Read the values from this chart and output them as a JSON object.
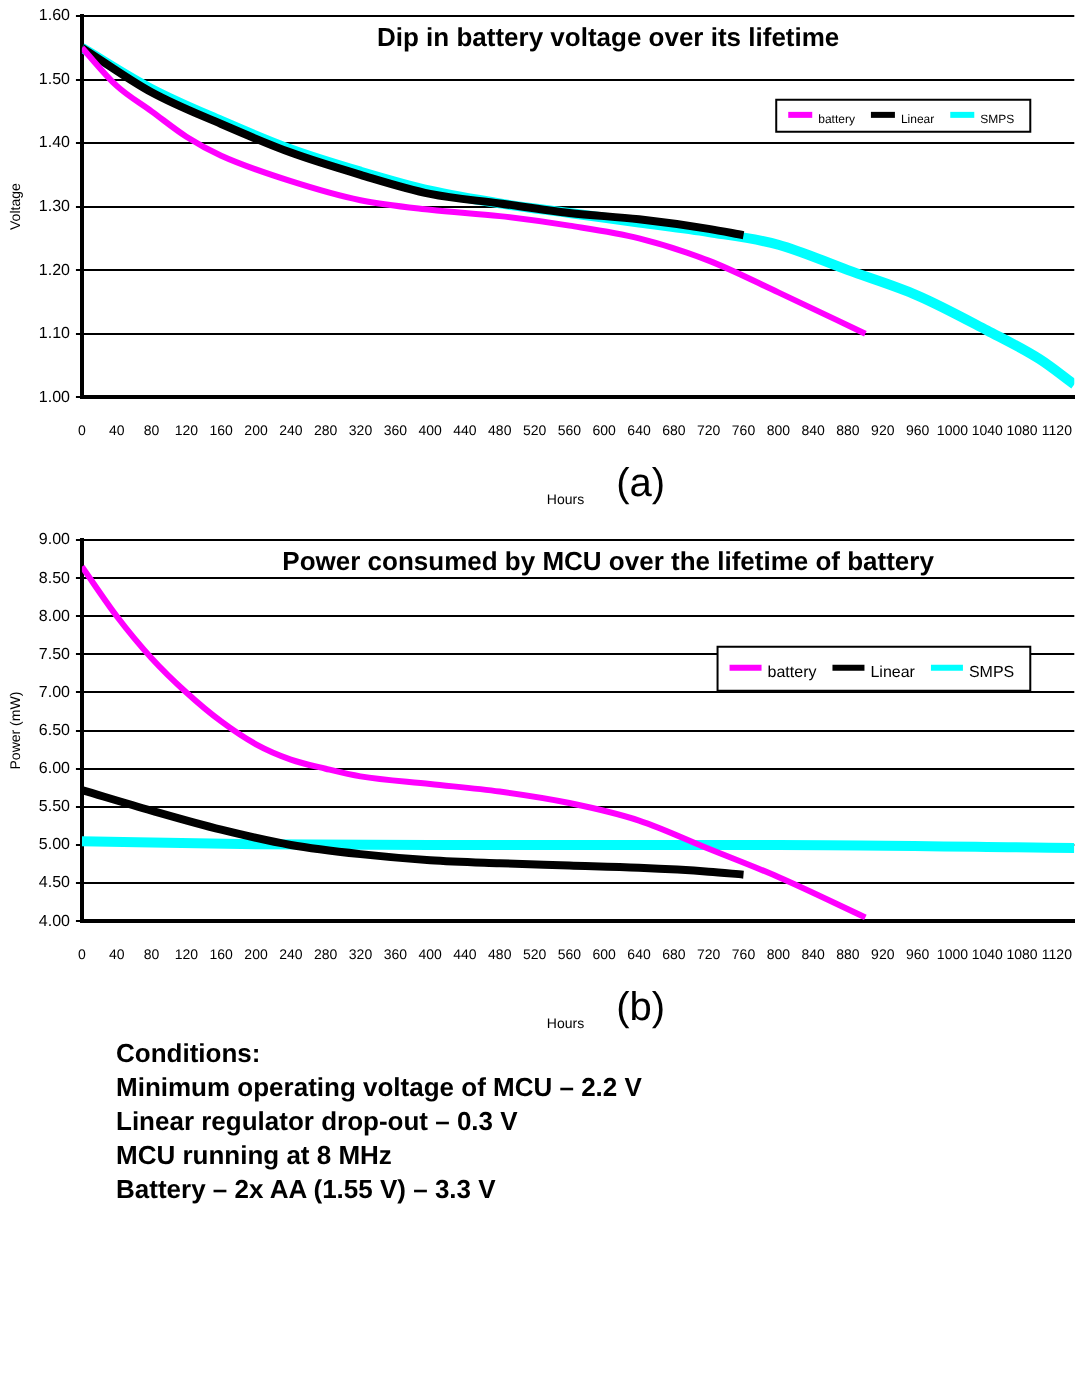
{
  "chart_data": [
    {
      "type": "line",
      "title": "Dip in battery voltage over its lifetime",
      "xlabel": "Hours",
      "ylabel": "Voltage",
      "annotations": [
        "(a)"
      ],
      "xlim": [
        0,
        1140
      ],
      "xticks": [
        0,
        40,
        80,
        120,
        160,
        200,
        240,
        280,
        320,
        360,
        400,
        440,
        480,
        520,
        560,
        600,
        640,
        680,
        720,
        760,
        800,
        840,
        880,
        920,
        960,
        1000,
        1040,
        1080,
        1120
      ],
      "ylim": [
        1.0,
        1.6
      ],
      "yticks": [
        {
          "value": 1.0,
          "label": "1.00"
        },
        {
          "value": 1.1,
          "label": "1.10"
        },
        {
          "value": 1.2,
          "label": "1.20"
        },
        {
          "value": 1.3,
          "label": "1.30"
        },
        {
          "value": 1.4,
          "label": "1.40"
        },
        {
          "value": 1.5,
          "label": "1.50"
        },
        {
          "value": 1.6,
          "label": "1.60"
        }
      ],
      "grid": "y",
      "legend": "top right",
      "marker": "none",
      "line_style": "solid",
      "series": [
        {
          "name": "battery",
          "color": "#ff00ff",
          "x": [
            0,
            40,
            80,
            120,
            160,
            240,
            320,
            400,
            480,
            560,
            640,
            720,
            800,
            900
          ],
          "values": [
            1.55,
            1.49,
            1.45,
            1.41,
            1.38,
            1.34,
            1.31,
            1.295,
            1.285,
            1.27,
            1.25,
            1.215,
            1.165,
            1.1
          ]
        },
        {
          "name": "Linear",
          "color": "#000000",
          "x": [
            0,
            80,
            160,
            240,
            320,
            400,
            480,
            560,
            640,
            720,
            760
          ],
          "values": [
            1.55,
            1.48,
            1.43,
            1.385,
            1.35,
            1.32,
            1.305,
            1.29,
            1.28,
            1.265,
            1.255
          ]
        },
        {
          "name": "SMPS",
          "color": "#00ffff",
          "x": [
            0,
            80,
            160,
            240,
            320,
            400,
            480,
            560,
            640,
            720,
            800,
            880,
            960,
            1040,
            1100,
            1140
          ],
          "values": [
            1.55,
            1.485,
            1.435,
            1.39,
            1.355,
            1.325,
            1.305,
            1.29,
            1.275,
            1.26,
            1.24,
            1.2,
            1.16,
            1.105,
            1.06,
            1.02
          ]
        }
      ]
    },
    {
      "type": "line",
      "title": "Power consumed by MCU over the lifetime of battery",
      "xlabel": "Hours",
      "ylabel": "Power (mW)",
      "annotations": [
        "(b)",
        "Conditions:",
        "Minimum operating voltage of MCU – 2.2 V",
        "Linear regulator drop-out – 0.3 V",
        "MCU running at 8 MHz",
        "Battery – 2x AA (1.55 V) – 3.3 V"
      ],
      "xlim": [
        0,
        1140
      ],
      "xticks": [
        0,
        40,
        80,
        120,
        160,
        200,
        240,
        280,
        320,
        360,
        400,
        440,
        480,
        520,
        560,
        600,
        640,
        680,
        720,
        760,
        800,
        840,
        880,
        920,
        960,
        1000,
        1040,
        1080,
        1120
      ],
      "ylim": [
        4.0,
        9.0
      ],
      "yticks": [
        {
          "value": 4.0,
          "label": "4.00"
        },
        {
          "value": 4.5,
          "label": "4.50"
        },
        {
          "value": 5.0,
          "label": "5.00"
        },
        {
          "value": 5.5,
          "label": "5.50"
        },
        {
          "value": 6.0,
          "label": "6.00"
        },
        {
          "value": 6.5,
          "label": "6.50"
        },
        {
          "value": 7.0,
          "label": "7.00"
        },
        {
          "value": 7.5,
          "label": "7.50"
        },
        {
          "value": 8.0,
          "label": "8.00"
        },
        {
          "value": 8.5,
          "label": "8.50"
        },
        {
          "value": 9.0,
          "label": "9.00"
        }
      ],
      "grid": "y",
      "legend": "top right",
      "marker": "none",
      "line_style": "solid",
      "series": [
        {
          "name": "battery",
          "color": "#ff00ff",
          "x": [
            0,
            40,
            80,
            120,
            160,
            200,
            240,
            280,
            320,
            400,
            480,
            560,
            640,
            720,
            800,
            900
          ],
          "values": [
            8.65,
            8.0,
            7.45,
            7.0,
            6.62,
            6.32,
            6.12,
            6.0,
            5.9,
            5.8,
            5.7,
            5.55,
            5.32,
            4.95,
            4.58,
            4.05
          ]
        },
        {
          "name": "Linear",
          "color": "#000000",
          "x": [
            0,
            80,
            160,
            240,
            320,
            400,
            480,
            560,
            640,
            720,
            760
          ],
          "values": [
            5.72,
            5.45,
            5.2,
            5.0,
            4.88,
            4.8,
            4.76,
            4.73,
            4.7,
            4.65,
            4.61
          ]
        },
        {
          "name": "SMPS",
          "color": "#00ffff",
          "x": [
            0,
            200,
            400,
            800,
            1140
          ],
          "values": [
            5.05,
            5.01,
            5.0,
            5.0,
            4.96
          ]
        }
      ]
    }
  ]
}
